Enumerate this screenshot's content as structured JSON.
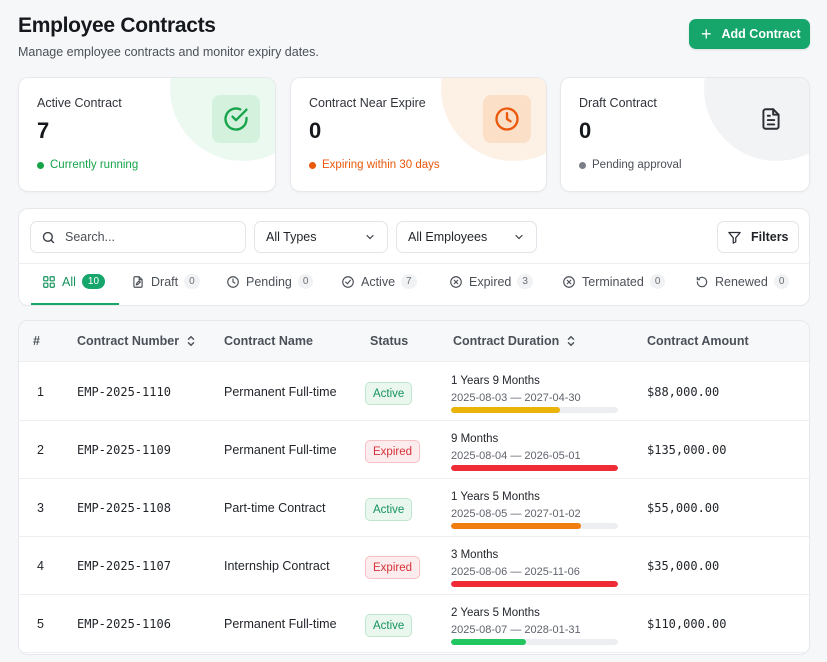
{
  "header": {
    "title": "Employee Contracts",
    "subtitle": "Manage employee contracts and monitor expiry dates.",
    "add_button": "Add Contract"
  },
  "cards": [
    {
      "label": "Active Contract",
      "value": "7",
      "note": "Currently running",
      "icon": "check-circle-icon",
      "color": "#16a34a"
    },
    {
      "label": "Contract Near Expire",
      "value": "0",
      "note": "Expiring within 30 days",
      "icon": "clock-icon",
      "color": "#ea580c"
    },
    {
      "label": "Draft Contract",
      "value": "0",
      "note": "Pending approval",
      "icon": "document-icon",
      "color": "#6b7280"
    }
  ],
  "filters": {
    "search_placeholder": "Search...",
    "types_select": "All Types",
    "employees_select": "All Employees",
    "filters_button": "Filters"
  },
  "tabs": [
    {
      "label": "All",
      "count": "10",
      "icon": "grid-icon"
    },
    {
      "label": "Draft",
      "count": "0",
      "icon": "draft-file-icon"
    },
    {
      "label": "Pending",
      "count": "0",
      "icon": "clock-icon"
    },
    {
      "label": "Active",
      "count": "7",
      "icon": "check-circle-icon"
    },
    {
      "label": "Expired",
      "count": "3",
      "icon": "x-circle-icon"
    },
    {
      "label": "Terminated",
      "count": "0",
      "icon": "x-circle-icon"
    },
    {
      "label": "Renewed",
      "count": "0",
      "icon": "refresh-icon"
    }
  ],
  "table": {
    "columns": [
      "#",
      "Contract Number",
      "Contract Name",
      "Status",
      "Contract Duration",
      "Contract Amount"
    ],
    "rows": [
      {
        "index": "1",
        "number": "EMP-2025-1110",
        "name": "Permanent Full-time",
        "status": "Active",
        "duration": "1 Years 9 Months",
        "dates": "2025-08-03 — 2027-04-30",
        "progress": 0.65,
        "bar_color": "#eab308",
        "amount": "$88,000.00"
      },
      {
        "index": "2",
        "number": "EMP-2025-1109",
        "name": "Permanent Full-time",
        "status": "Expired",
        "duration": "9 Months",
        "dates": "2025-08-04 — 2026-05-01",
        "progress": 1.0,
        "bar_color": "#ef2b36",
        "amount": "$135,000.00"
      },
      {
        "index": "3",
        "number": "EMP-2025-1108",
        "name": "Part-time Contract",
        "status": "Active",
        "duration": "1 Years 5 Months",
        "dates": "2025-08-05 — 2027-01-02",
        "progress": 0.78,
        "bar_color": "#f07c12",
        "amount": "$55,000.00"
      },
      {
        "index": "4",
        "number": "EMP-2025-1107",
        "name": "Internship Contract",
        "status": "Expired",
        "duration": "3 Months",
        "dates": "2025-08-06 — 2025-11-06",
        "progress": 1.0,
        "bar_color": "#ef2b36",
        "amount": "$35,000.00"
      },
      {
        "index": "5",
        "number": "EMP-2025-1106",
        "name": "Permanent Full-time",
        "status": "Active",
        "duration": "2 Years 5 Months",
        "dates": "2025-08-07 — 2028-01-31",
        "progress": 0.45,
        "bar_color": "#22c55e",
        "amount": "$110,000.00"
      }
    ]
  },
  "colors": {
    "accent": "#16a56a",
    "active": "#14935c",
    "expired": "#d6323a"
  }
}
